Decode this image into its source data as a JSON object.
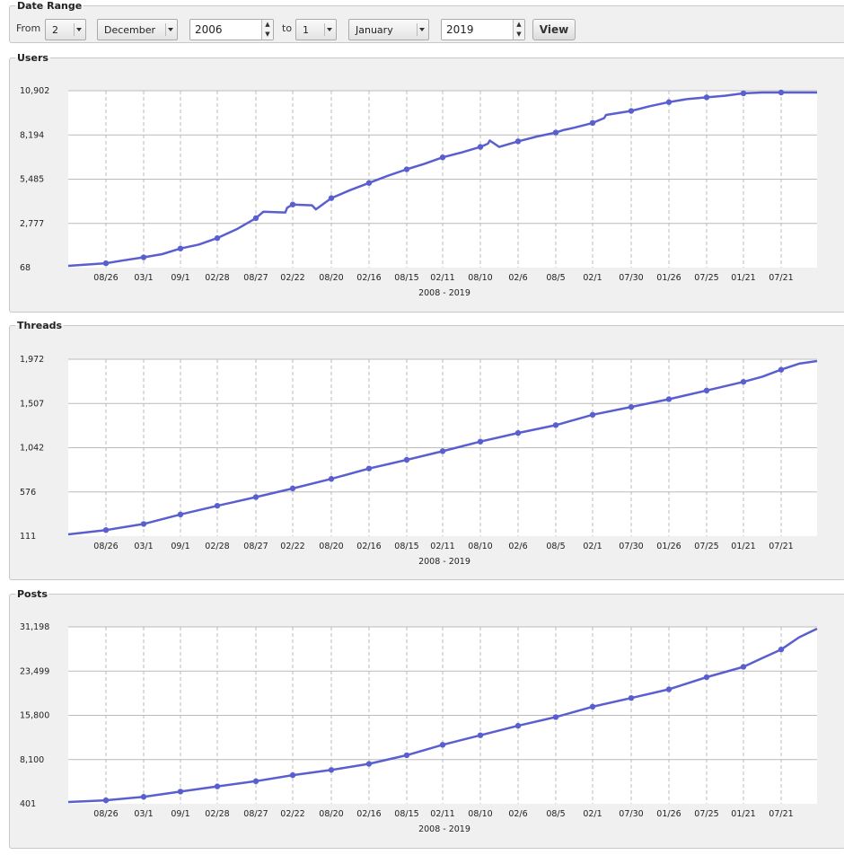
{
  "date_range": {
    "legend": "Date Range",
    "from_label": "From",
    "from_day": "2",
    "from_month": "December",
    "from_year": "2006",
    "to_label": "to",
    "to_day": "1",
    "to_month": "January",
    "to_year": "2019",
    "view_button": "View"
  },
  "colors": {
    "line": "#5a5fd0",
    "plot_bg": "#ffffff",
    "panel_bg": "#f0f0f0",
    "grid": "#bbbbbb"
  },
  "chart_data": [
    {
      "type": "line",
      "title": "Users",
      "xlabel": "2008 - 2019",
      "ylabel": "",
      "grid": true,
      "yticks": [
        "68",
        "2,777",
        "5,485",
        "8,194",
        "10,902"
      ],
      "ylim": [
        68,
        10902
      ],
      "xticks": [
        "08/26",
        "03/1",
        "09/1",
        "02/28",
        "08/27",
        "02/22",
        "08/20",
        "02/16",
        "08/15",
        "02/11",
        "08/10",
        "02/6",
        "08/5",
        "02/1",
        "07/30",
        "01/26",
        "07/25",
        "01/21",
        "07/21"
      ],
      "series": [
        {
          "x": [
            0,
            1,
            1.5,
            2,
            2.5,
            3,
            3.5,
            4,
            4.5,
            5,
            5.2,
            5.8,
            5.85,
            6,
            6.5,
            6.6,
            7,
            7.5,
            8,
            8.5,
            9,
            9.5,
            10,
            10.5,
            11,
            11.2,
            11.25,
            11.5,
            12,
            12.5,
            13,
            13.2,
            13.5,
            14,
            14.3,
            14.35,
            15,
            15.5,
            16,
            16.5,
            17,
            17.5,
            18,
            18.5,
            19,
            19.5,
            20
          ],
          "y": [
            68,
            230,
            420,
            600,
            800,
            1150,
            1400,
            1800,
            2350,
            3050,
            3450,
            3400,
            3700,
            3900,
            3850,
            3600,
            4300,
            4800,
            5250,
            5700,
            6100,
            6450,
            6850,
            7150,
            7500,
            7700,
            7900,
            7500,
            7850,
            8150,
            8400,
            8550,
            8700,
            9000,
            9300,
            9500,
            9750,
            10050,
            10300,
            10500,
            10600,
            10700,
            10850,
            10900,
            10902,
            10902,
            10902
          ],
          "note_x_units": "tick index"
        }
      ]
    },
    {
      "type": "line",
      "title": "Threads",
      "xlabel": "2008 - 2019",
      "ylabel": "",
      "grid": true,
      "yticks": [
        "111",
        "576",
        "1,042",
        "1,507",
        "1,972"
      ],
      "ylim": [
        111,
        1972
      ]
    },
    {
      "type": "line",
      "title": "Posts",
      "xlabel": "2008 - 2019",
      "ylabel": "",
      "grid": true,
      "yticks": [
        "401",
        "8,100",
        "15,800",
        "23,499",
        "31,198"
      ],
      "ylim": [
        401,
        31198
      ]
    }
  ]
}
